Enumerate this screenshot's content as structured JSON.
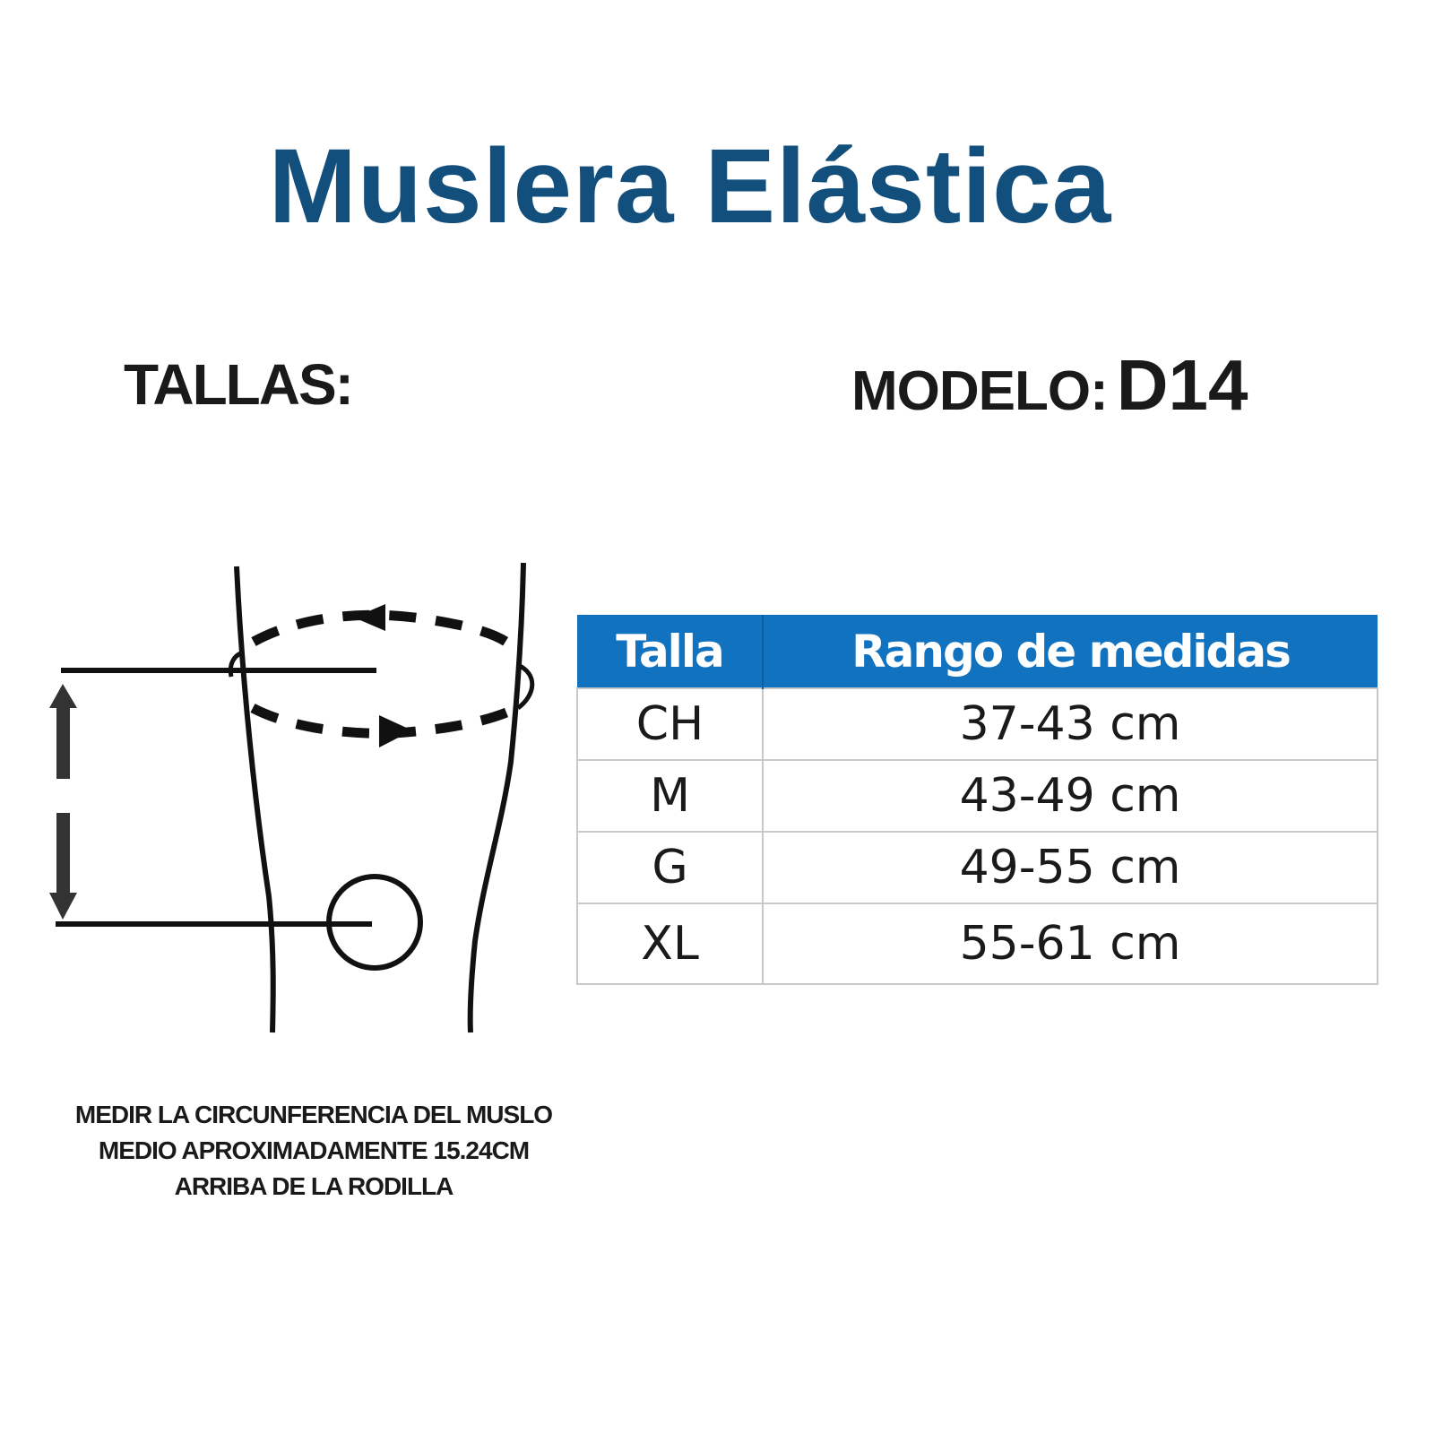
{
  "title": "Muslera Elástica",
  "sizes_label": "TALLAS:",
  "model": {
    "label": "MODELO:",
    "value": "D14"
  },
  "table": {
    "header_color": "#1172c0",
    "headers": [
      "Talla",
      "Rango de medidas"
    ],
    "rows": [
      {
        "size": "CH",
        "range": "37-43 cm"
      },
      {
        "size": "M",
        "range": "43-49 cm"
      },
      {
        "size": "G",
        "range": "49-55 cm"
      },
      {
        "size": "XL",
        "range": "55-61 cm"
      }
    ]
  },
  "diagram": {
    "icon": "thigh-measurement-diagram"
  },
  "note": [
    "MEDIR LA CIRCUNFERENCIA DEL MUSLO",
    "MEDIO APROXIMADAMENTE 15.24CM",
    "ARRIBA DE LA RODILLA"
  ],
  "colors": {
    "title": "#124f7d",
    "text": "#1a1a1a"
  }
}
